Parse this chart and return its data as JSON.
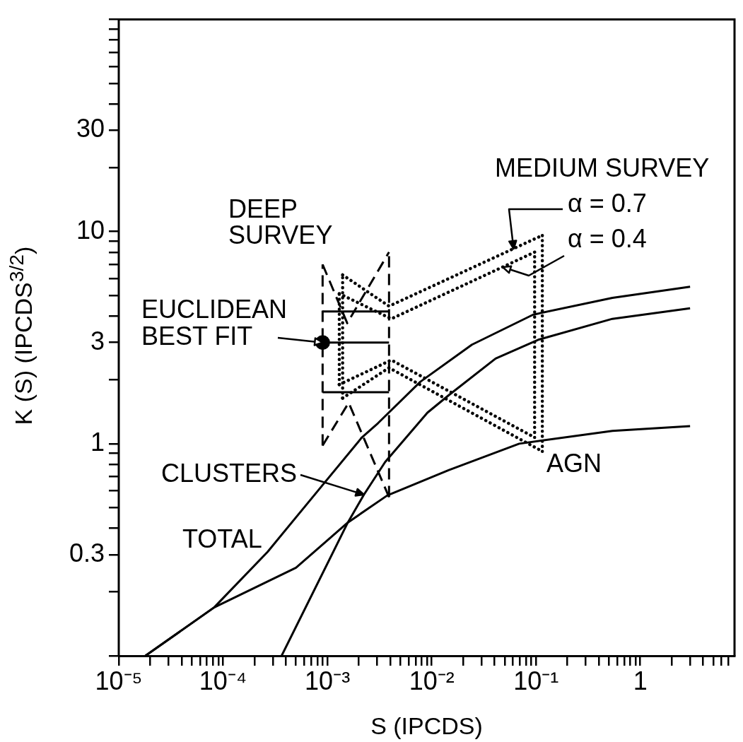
{
  "chart_data": {
    "type": "line",
    "xlabel": "S (IPCDS)",
    "ylabel": "K (S) (IPCDS$^{3/2}$)",
    "log": "xy",
    "xlim": [
      1e-05,
      8
    ],
    "ylim": [
      0.1,
      100
    ],
    "xticks": [
      {
        "value": 1e-05,
        "label": "10⁻⁵"
      },
      {
        "value": 2e-05,
        "label": null
      },
      {
        "value": 3e-05,
        "label": null
      },
      {
        "value": 4e-05,
        "label": null
      },
      {
        "value": 5e-05,
        "label": null
      },
      {
        "value": 6e-05,
        "label": null
      },
      {
        "value": 7e-05,
        "label": null
      },
      {
        "value": 8e-05,
        "label": null
      },
      {
        "value": 9e-05,
        "label": null
      },
      {
        "value": 0.0001,
        "label": "10⁻⁴"
      },
      {
        "value": 0.0002,
        "label": null
      },
      {
        "value": 0.0003,
        "label": null
      },
      {
        "value": 0.0004,
        "label": null
      },
      {
        "value": 0.0005,
        "label": null
      },
      {
        "value": 0.0006,
        "label": null
      },
      {
        "value": 0.0007,
        "label": null
      },
      {
        "value": 0.0008,
        "label": null
      },
      {
        "value": 0.0009,
        "label": null
      },
      {
        "value": 0.001,
        "label": "10⁻³"
      },
      {
        "value": 0.002,
        "label": null
      },
      {
        "value": 0.003,
        "label": null
      },
      {
        "value": 0.004,
        "label": null
      },
      {
        "value": 0.005,
        "label": null
      },
      {
        "value": 0.006,
        "label": null
      },
      {
        "value": 0.007,
        "label": null
      },
      {
        "value": 0.008,
        "label": null
      },
      {
        "value": 0.009,
        "label": null
      },
      {
        "value": 0.01,
        "label": "10⁻²"
      },
      {
        "value": 0.02,
        "label": null
      },
      {
        "value": 0.03,
        "label": null
      },
      {
        "value": 0.04,
        "label": null
      },
      {
        "value": 0.05,
        "label": null
      },
      {
        "value": 0.06,
        "label": null
      },
      {
        "value": 0.07,
        "label": null
      },
      {
        "value": 0.08,
        "label": null
      },
      {
        "value": 0.09,
        "label": null
      },
      {
        "value": 0.1,
        "label": "10⁻¹"
      },
      {
        "value": 0.2,
        "label": null
      },
      {
        "value": 0.3,
        "label": null
      },
      {
        "value": 0.4,
        "label": null
      },
      {
        "value": 0.5,
        "label": null
      },
      {
        "value": 0.6,
        "label": null
      },
      {
        "value": 0.7,
        "label": null
      },
      {
        "value": 0.8,
        "label": null
      },
      {
        "value": 0.9,
        "label": null
      },
      1,
      {
        "value": 2,
        "label": null
      },
      {
        "value": 3,
        "label": null
      },
      {
        "value": 4,
        "label": null
      },
      {
        "value": 5,
        "label": null
      },
      {
        "value": 6,
        "label": null
      },
      {
        "value": 7,
        "label": null
      }
    ],
    "yticks": [
      {
        "value": 0.1,
        "label": null
      },
      {
        "value": 0.2,
        "label": null
      },
      0.3,
      {
        "value": 0.4,
        "label": null
      },
      {
        "value": 0.5,
        "label": null
      },
      {
        "value": 0.6,
        "label": null
      },
      {
        "value": 0.7,
        "label": null
      },
      {
        "value": 0.8,
        "label": null
      },
      {
        "value": 0.9,
        "label": null
      },
      1,
      {
        "value": 2,
        "label": null
      },
      3,
      {
        "value": 4,
        "label": null
      },
      {
        "value": 5,
        "label": null
      },
      {
        "value": 6,
        "label": null
      },
      {
        "value": 7,
        "label": null
      },
      {
        "value": 8,
        "label": null
      },
      {
        "value": 9,
        "label": null
      },
      10,
      {
        "value": 20,
        "label": null
      },
      30,
      {
        "value": 40,
        "label": null
      },
      {
        "value": 50,
        "label": null
      },
      {
        "value": 60,
        "label": null
      },
      {
        "value": 70,
        "label": null
      },
      {
        "value": 80,
        "label": null
      },
      {
        "value": 90,
        "label": null
      },
      {
        "value": 100,
        "label": null
      }
    ],
    "series": [
      {
        "color": "#000000",
        "line_style": "solid",
        "x": [
          1.8e-05,
          8.2e-05,
          0.000267,
          0.00088,
          0.00214,
          0.00306,
          0.0078,
          0.0243,
          0.094,
          0.54,
          3.0
        ],
        "values": [
          0.1,
          0.169,
          0.309,
          0.63,
          1.07,
          1.25,
          1.96,
          2.93,
          4.06,
          4.87,
          5.5
        ]
      },
      {
        "color": "#000000",
        "line_style": "solid",
        "x": [
          1.8e-05,
          8.2e-05,
          0.0005,
          0.00157,
          0.00375,
          0.0145,
          0.069,
          0.54,
          3.0
        ],
        "values": [
          0.1,
          0.169,
          0.26,
          0.425,
          0.57,
          0.75,
          1.0,
          1.15,
          1.21
        ]
      },
      {
        "color": "#000000",
        "line_style": "solid",
        "x": [
          0.000364,
          0.00157,
          0.00224,
          0.00358,
          0.0091,
          0.0145,
          0.041,
          0.105,
          0.54,
          3.0
        ],
        "values": [
          0.1,
          0.425,
          0.575,
          0.82,
          1.4,
          1.69,
          2.52,
          3.09,
          3.88,
          4.35
        ]
      },
      {
        "color": "#000000",
        "line_style": "solid",
        "x": [
          0.0009,
          0.0039
        ],
        "values": [
          4.2,
          4.2
        ]
      },
      {
        "color": "#000000",
        "line_style": "solid",
        "x": [
          0.0009,
          0.0039
        ],
        "values": [
          1.75,
          1.75
        ]
      },
      {
        "color": "#000000",
        "line_style": "solid",
        "x": [
          0.0009,
          0.0039
        ],
        "values": [
          3.0,
          3.0
        ]
      },
      {
        "color": "#000000",
        "line_style": "dashed",
        "x": [
          0.0009,
          0.00155,
          0.0039
        ],
        "values": [
          7.0,
          3.7,
          8.0
        ]
      },
      {
        "color": "#000000",
        "line_style": "dashed",
        "x": [
          0.0009,
          0.0016,
          0.0039
        ],
        "values": [
          0.98,
          1.56,
          0.56
        ]
      },
      {
        "color": "#000000",
        "line_style": "dashed",
        "x": [
          0.0009,
          0.0009
        ],
        "values": [
          0.98,
          7.0
        ]
      },
      {
        "color": "#000000",
        "line_style": "dashed",
        "x": [
          0.0039,
          0.0039
        ],
        "values": [
          0.56,
          8.0
        ]
      },
      {
        "color": "#000000",
        "line_style": "dotted",
        "x": [
          0.0014,
          0.0039,
          0.115
        ],
        "values": [
          6.25,
          4.45,
          9.6
        ]
      },
      {
        "color": "#000000",
        "line_style": "dotted",
        "x": [
          0.0014,
          0.0039,
          0.115
        ],
        "values": [
          1.64,
          2.28,
          0.92
        ]
      },
      {
        "color": "#000000",
        "line_style": "dotted",
        "x": [
          0.0014,
          0.0014
        ],
        "values": [
          1.64,
          6.25
        ]
      },
      {
        "color": "#000000",
        "line_style": "dotted",
        "x": [
          0.115,
          0.115
        ],
        "values": [
          0.92,
          9.6
        ]
      },
      {
        "color": "#000000",
        "line_style": "dotted",
        "x": [
          0.0013,
          0.0041,
          0.097
        ],
        "values": [
          5.1,
          3.88,
          8.0
        ]
      },
      {
        "color": "#000000",
        "line_style": "dotted",
        "x": [
          0.0013,
          0.0041,
          0.097
        ],
        "values": [
          1.9,
          2.48,
          1.07
        ]
      },
      {
        "color": "#000000",
        "line_style": "dotted",
        "x": [
          0.0013,
          0.0013
        ],
        "values": [
          1.9,
          5.1
        ]
      },
      {
        "color": "#000000",
        "line_style": "dotted",
        "x": [
          0.097,
          0.097
        ],
        "values": [
          1.07,
          8.0
        ]
      },
      {
        "type": "scatter",
        "color": "#000000",
        "marker": "circle",
        "x": [
          0.0009
        ],
        "values": [
          3.0
        ]
      }
    ],
    "annotations": [
      "MEDIUM SURVEY",
      {
        "text": "α = 0.7",
        "x": 0.061,
        "y": 8.3
      },
      {
        "text": "α = 0.4",
        "x": 0.048,
        "y": 6.8
      },
      "DEEP",
      "SURVEY",
      "EUCLIDEAN",
      {
        "text": "BEST FIT",
        "x": 0.0009,
        "y": 3.0
      },
      {
        "text": "CLUSTERS",
        "x": 0.00224,
        "y": 0.575
      },
      "TOTAL",
      "AGN"
    ]
  }
}
